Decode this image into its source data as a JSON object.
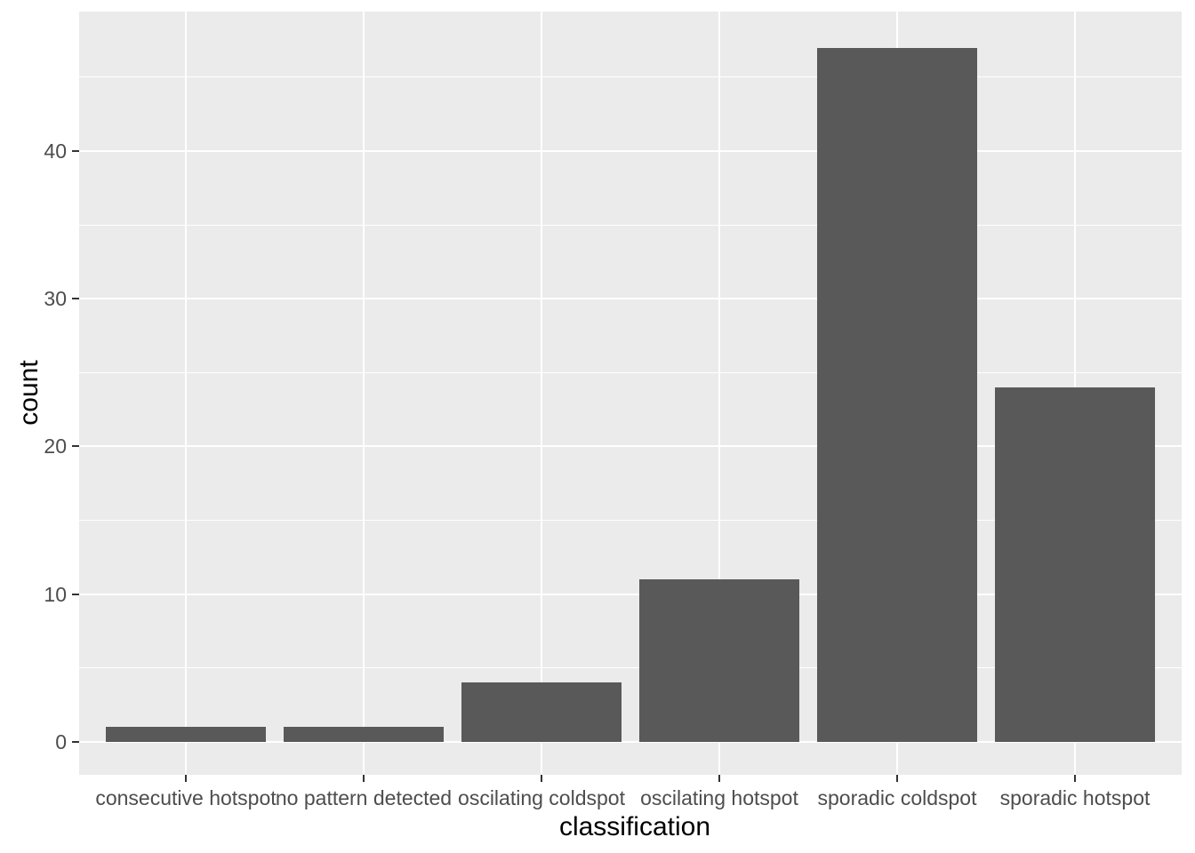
{
  "chart_data": {
    "type": "bar",
    "title": "",
    "xlabel": "classification",
    "ylabel": "count",
    "categories": [
      "consecutive hotspot",
      "no pattern detected",
      "oscilating coldspot",
      "oscilating hotspot",
      "sporadic coldspot",
      "sporadic hotspot"
    ],
    "values": [
      1,
      1,
      4,
      11,
      47,
      24
    ],
    "y_ticks": [
      0,
      10,
      20,
      30,
      40
    ],
    "y_minor_ticks": [
      5,
      15,
      25,
      35,
      45
    ],
    "ylim": [
      -2.23,
      49.44
    ],
    "bar_width_fraction": 0.9,
    "grid": "white major and minor horizontal lines, white major vertical lines at category centers",
    "legend": "none",
    "style": {
      "bar_fill": "#595959",
      "panel_background": "#EBEBEB",
      "grid_color": "#FFFFFF",
      "tick_label_color": "#4D4D4D",
      "axis_title_color": "#000000",
      "tick_mark_color": "#333333",
      "outer_background": "#FFFFFF"
    }
  }
}
